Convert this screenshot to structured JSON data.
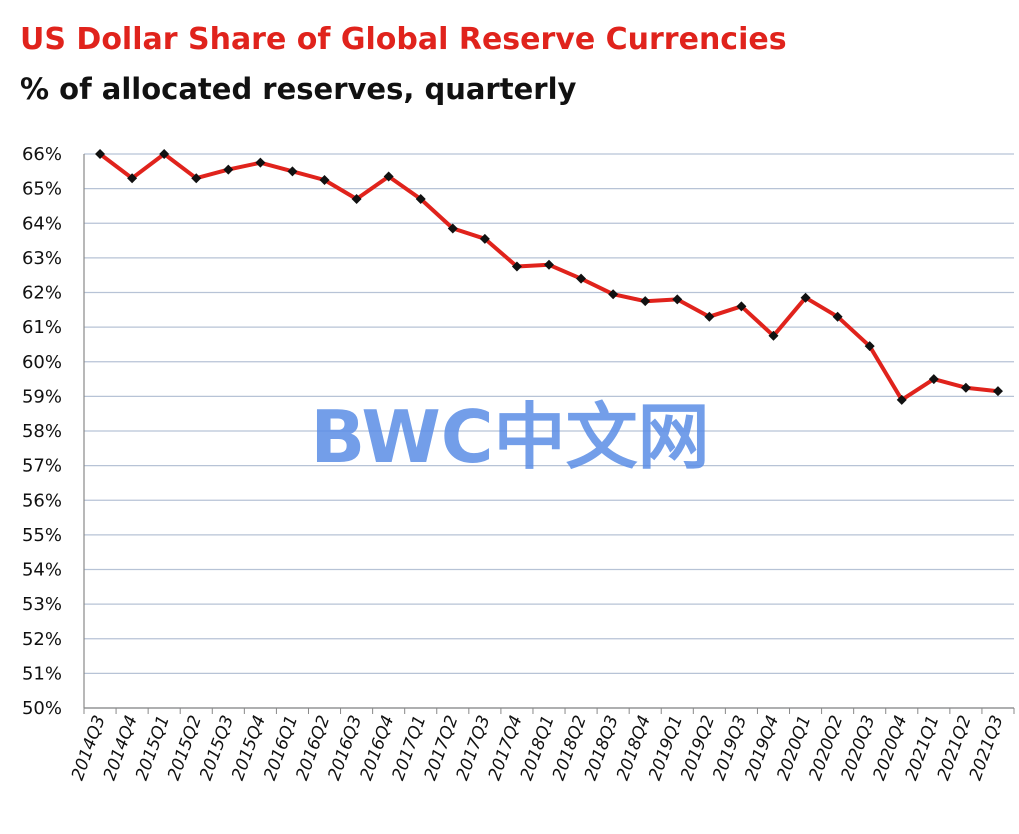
{
  "title": "US Dollar Share of Global Reserve Currencies",
  "subtitle": "% of allocated reserves, quarterly",
  "watermark": "BWC中文网",
  "colors": {
    "title": "#e0231c",
    "line": "#e0231c",
    "marker": "#111111",
    "grid": "#b7c3d6",
    "watermark": "#5b8ee6"
  },
  "chart_data": {
    "type": "line",
    "title": "US Dollar Share of Global Reserve Currencies",
    "subtitle": "% of allocated reserves, quarterly",
    "xlabel": "",
    "ylabel": "",
    "ylim": [
      50,
      66
    ],
    "y_ticks": [
      "50%",
      "51%",
      "52%",
      "53%",
      "54%",
      "55%",
      "56%",
      "57%",
      "58%",
      "59%",
      "60%",
      "61%",
      "62%",
      "63%",
      "64%",
      "65%",
      "66%"
    ],
    "grid": true,
    "categories": [
      "2014Q3",
      "2014Q4",
      "2015Q1",
      "2015Q2",
      "2015Q3",
      "2015Q4",
      "2016Q1",
      "2016Q2",
      "2016Q3",
      "2016Q4",
      "2017Q1",
      "2017Q2",
      "2017Q3",
      "2017Q4",
      "2018Q1",
      "2018Q2",
      "2018Q3",
      "2018Q4",
      "2019Q1",
      "2019Q2",
      "2019Q3",
      "2019Q4",
      "2020Q1",
      "2020Q2",
      "2020Q3",
      "2020Q4",
      "2021Q1",
      "2021Q2",
      "2021Q3"
    ],
    "series": [
      {
        "values": [
          66.0,
          65.3,
          66.0,
          65.3,
          65.55,
          65.75,
          65.5,
          65.25,
          64.7,
          65.35,
          64.7,
          63.85,
          63.55,
          62.75,
          62.8,
          62.4,
          61.95,
          61.75,
          61.8,
          61.3,
          61.6,
          60.75,
          61.85,
          61.3,
          60.45,
          58.9,
          59.5,
          59.25,
          59.15
        ]
      }
    ]
  }
}
